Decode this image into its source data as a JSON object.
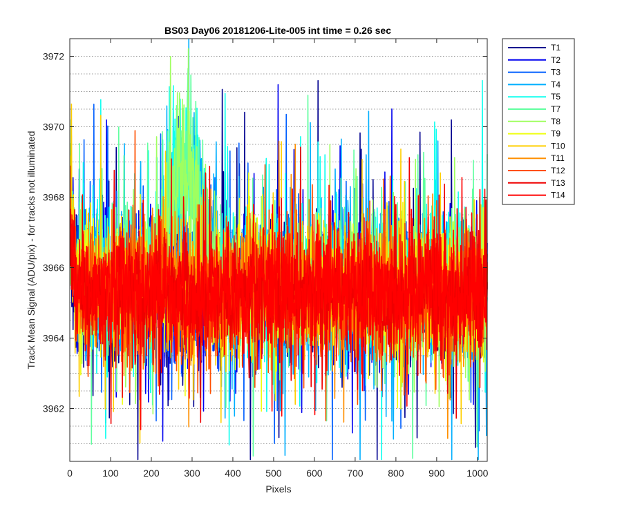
{
  "chart_data": {
    "type": "line",
    "title": "BS03 Day06 20181206-Lite-005 int time = 0.26 sec",
    "xlabel": "Pixels",
    "ylabel": "Track Mean Signal (ADU/pix) - for tracks not illuminated",
    "xlim": [
      0,
      1024
    ],
    "ylim": [
      3960.5,
      3972.5
    ],
    "xticks": [
      0,
      100,
      200,
      300,
      400,
      500,
      600,
      700,
      800,
      900,
      1000
    ],
    "yticks": [
      3962,
      3964,
      3966,
      3968,
      3970,
      3972
    ],
    "grid": "dotted major and minor y-gridlines",
    "legend_position": "outside-top-right",
    "series": [
      {
        "name": "T1",
        "color": "#00008f",
        "mean": 3965.2,
        "spread": 1.1
      },
      {
        "name": "T2",
        "color": "#0000ef",
        "mean": 3965.3,
        "spread": 1.1
      },
      {
        "name": "T3",
        "color": "#005fff",
        "mean": 3965.4,
        "spread": 1.1
      },
      {
        "name": "T4",
        "color": "#00afff",
        "mean": 3965.5,
        "spread": 1.1
      },
      {
        "name": "T5",
        "color": "#10ffef",
        "mean": 3965.6,
        "spread": 1.1
      },
      {
        "name": "T7",
        "color": "#60ff9f",
        "mean": 3965.6,
        "spread": 1.1
      },
      {
        "name": "T8",
        "color": "#9fff60",
        "mean": 3965.5,
        "spread": 1.0
      },
      {
        "name": "T9",
        "color": "#efff10",
        "mean": 3965.4,
        "spread": 1.0
      },
      {
        "name": "T10",
        "color": "#ffcf00",
        "mean": 3965.3,
        "spread": 1.0
      },
      {
        "name": "T11",
        "color": "#ff8f00",
        "mean": 3965.3,
        "spread": 1.0
      },
      {
        "name": "T12",
        "color": "#ff4f00",
        "mean": 3965.2,
        "spread": 1.0
      },
      {
        "name": "T13",
        "color": "#ef0000",
        "mean": 3965.2,
        "spread": 0.95
      },
      {
        "name": "T14",
        "color": "#ff0000",
        "mean": 3965.3,
        "spread": 0.9
      }
    ]
  }
}
